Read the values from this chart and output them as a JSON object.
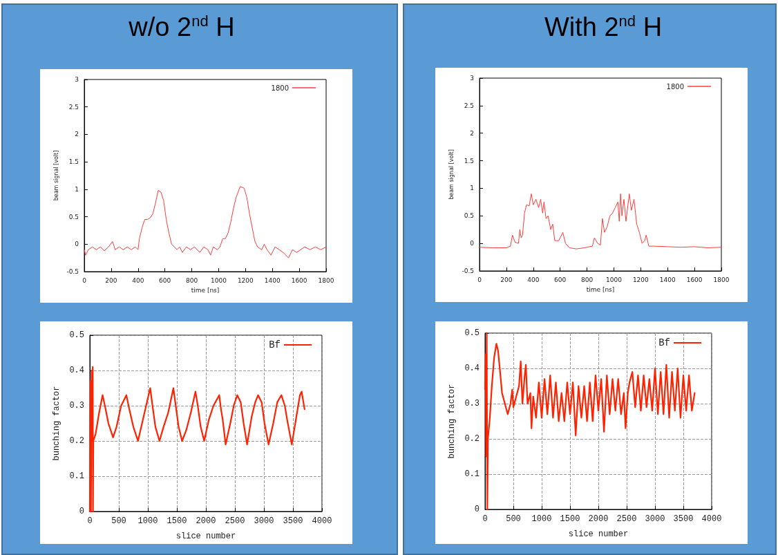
{
  "chart_data": [
    {
      "type": "line",
      "title": "w/o 2$^{nd}$ H",
      "xlabel": "time [ns]",
      "ylabel": "beam signal [volt]",
      "xlim": [
        0,
        1800
      ],
      "xticks": [
        0,
        200,
        400,
        600,
        800,
        1000,
        1200,
        1400,
        1600,
        1800
      ],
      "ylim": [
        -0.5,
        3
      ],
      "yticks": [
        -0.5,
        0,
        0.5,
        1,
        1.5,
        2,
        2.5,
        3
      ],
      "grid": false,
      "legend": "top right",
      "marker": "none",
      "line_style": "solid",
      "series": [
        {
          "name": "1800",
          "color": "#ff3b3b",
          "x": [
            0,
            10,
            30,
            60,
            90,
            120,
            150,
            180,
            210,
            230,
            260,
            290,
            320,
            350,
            380,
            400,
            410,
            430,
            450,
            470,
            490,
            510,
            530,
            550,
            570,
            590,
            610,
            630,
            650,
            670,
            690,
            710,
            730,
            760,
            790,
            820,
            860,
            890,
            920,
            940,
            960,
            990,
            1010,
            1030,
            1050,
            1070,
            1090,
            1110,
            1130,
            1160,
            1190,
            1210,
            1230,
            1250,
            1270,
            1290,
            1320,
            1340,
            1360,
            1390,
            1420,
            1450,
            1480,
            1520,
            1550,
            1580,
            1610,
            1640,
            1680,
            1720,
            1760,
            1800
          ],
          "values": [
            -0.1,
            -0.2,
            -0.1,
            -0.05,
            -0.1,
            -0.05,
            -0.12,
            -0.05,
            0.05,
            -0.1,
            -0.05,
            -0.1,
            -0.05,
            -0.1,
            -0.05,
            -0.1,
            0.1,
            0.3,
            0.45,
            0.45,
            0.48,
            0.55,
            0.75,
            0.98,
            0.95,
            0.8,
            0.45,
            0.2,
            0.0,
            -0.05,
            -0.1,
            -0.05,
            -0.15,
            -0.05,
            -0.1,
            -0.05,
            -0.15,
            -0.05,
            -0.1,
            -0.2,
            -0.05,
            -0.1,
            -0.05,
            0.1,
            0.1,
            0.2,
            0.4,
            0.65,
            0.85,
            1.05,
            1.02,
            0.85,
            0.55,
            0.3,
            0.05,
            -0.05,
            -0.1,
            0.0,
            -0.1,
            -0.2,
            -0.05,
            -0.1,
            -0.15,
            -0.25,
            -0.1,
            -0.15,
            -0.1,
            -0.05,
            -0.1,
            -0.05,
            -0.1,
            -0.05
          ]
        }
      ]
    },
    {
      "type": "line",
      "title": "With 2$^{nd}$ H",
      "xlabel": "time [ns]",
      "ylabel": "beam signal [volt]",
      "xlim": [
        0,
        1800
      ],
      "xticks": [
        0,
        200,
        400,
        600,
        800,
        1000,
        1200,
        1400,
        1600,
        1800
      ],
      "ylim": [
        -0.5,
        3
      ],
      "yticks": [
        -0.5,
        0,
        0.5,
        1,
        1.5,
        2,
        2.5,
        3
      ],
      "grid": false,
      "legend": "top right",
      "marker": "none",
      "line_style": "solid",
      "series": [
        {
          "name": "1800",
          "color": "#ff3b3b",
          "x": [
            0,
            100,
            200,
            230,
            245,
            265,
            290,
            300,
            310,
            320,
            335,
            350,
            370,
            385,
            400,
            420,
            440,
            455,
            470,
            480,
            495,
            510,
            530,
            545,
            560,
            590,
            620,
            640,
            670,
            720,
            780,
            840,
            855,
            880,
            900,
            915,
            930,
            950,
            970,
            990,
            1010,
            1030,
            1040,
            1050,
            1060,
            1075,
            1090,
            1105,
            1115,
            1130,
            1150,
            1170,
            1190,
            1210,
            1230,
            1240,
            1260,
            1300,
            1400,
            1500,
            1600,
            1700,
            1800
          ],
          "values": [
            -0.07,
            -0.08,
            -0.08,
            -0.05,
            0.15,
            0.02,
            0.0,
            0.25,
            0.1,
            0.15,
            0.55,
            0.7,
            0.68,
            0.9,
            0.7,
            0.8,
            0.65,
            0.8,
            0.55,
            0.75,
            0.45,
            0.5,
            0.25,
            0.35,
            0.05,
            0.05,
            0.2,
            0.0,
            -0.08,
            -0.1,
            -0.08,
            -0.05,
            0.1,
            0.0,
            -0.03,
            0.45,
            0.2,
            0.3,
            0.5,
            0.55,
            0.65,
            0.75,
            0.4,
            0.9,
            0.5,
            0.8,
            0.4,
            0.7,
            0.9,
            0.6,
            0.8,
            0.35,
            0.2,
            0.0,
            0.05,
            0.15,
            -0.05,
            -0.05,
            -0.06,
            -0.07,
            -0.06,
            -0.08,
            -0.07
          ]
        }
      ]
    },
    {
      "type": "line",
      "xlabel": "slice number",
      "ylabel": "bunching factor",
      "xlim": [
        0,
        4000
      ],
      "xticks": [
        0,
        500,
        1000,
        1500,
        2000,
        2500,
        3000,
        3500,
        4000
      ],
      "ylim": [
        0,
        0.5
      ],
      "yticks": [
        0,
        0.1,
        0.2,
        0.3,
        0.4,
        0.5
      ],
      "grid": true,
      "legend": "top right",
      "marker": "none",
      "line_style": "solid",
      "series": [
        {
          "name": "Bf",
          "color": "#ff2200",
          "x": [
            0,
            10,
            20,
            30,
            40,
            50,
            55,
            60,
            100,
            160,
            220,
            260,
            320,
            400,
            460,
            540,
            630,
            680,
            750,
            830,
            900,
            970,
            1040,
            1080,
            1130,
            1200,
            1270,
            1350,
            1440,
            1480,
            1530,
            1590,
            1660,
            1740,
            1820,
            1860,
            1910,
            1970,
            2050,
            2130,
            2230,
            2260,
            2290,
            2340,
            2420,
            2480,
            2540,
            2600,
            2650,
            2710,
            2790,
            2850,
            2900,
            2960,
            3010,
            3080,
            3160,
            3230,
            3300,
            3360,
            3400,
            3480,
            3560,
            3620,
            3650,
            3700
          ],
          "values": [
            0,
            0.37,
            0,
            0.4,
            0.2,
            0.41,
            0,
            0.2,
            0.22,
            0.28,
            0.33,
            0.3,
            0.25,
            0.21,
            0.24,
            0.3,
            0.33,
            0.29,
            0.24,
            0.2,
            0.25,
            0.3,
            0.35,
            0.3,
            0.24,
            0.2,
            0.24,
            0.28,
            0.35,
            0.3,
            0.24,
            0.2,
            0.23,
            0.28,
            0.34,
            0.3,
            0.24,
            0.2,
            0.26,
            0.3,
            0.33,
            0.29,
            0.26,
            0.19,
            0.25,
            0.3,
            0.33,
            0.31,
            0.25,
            0.19,
            0.27,
            0.31,
            0.33,
            0.31,
            0.25,
            0.19,
            0.25,
            0.31,
            0.33,
            0.3,
            0.26,
            0.19,
            0.27,
            0.33,
            0.34,
            0.29
          ]
        }
      ]
    },
    {
      "type": "line",
      "xlabel": "slice number",
      "ylabel": "bunching factor",
      "xlim": [
        0,
        4000
      ],
      "xticks": [
        0,
        500,
        1000,
        1500,
        2000,
        2500,
        3000,
        3500,
        4000
      ],
      "ylim": [
        0,
        0.5
      ],
      "yticks": [
        0,
        0.1,
        0.2,
        0.3,
        0.4,
        0.5
      ],
      "grid": true,
      "legend": "top right",
      "marker": "none",
      "line_style": "solid",
      "series": [
        {
          "name": "Bf",
          "color": "#ff2200",
          "x": [
            0,
            10,
            20,
            30,
            40,
            50,
            80,
            120,
            160,
            200,
            230,
            260,
            300,
            350,
            400,
            450,
            480,
            500,
            550,
            600,
            630,
            660,
            700,
            720,
            750,
            800,
            820,
            850,
            900,
            950,
            1000,
            1050,
            1100,
            1150,
            1200,
            1250,
            1300,
            1350,
            1400,
            1450,
            1500,
            1550,
            1600,
            1650,
            1700,
            1750,
            1800,
            1850,
            1900,
            1950,
            2000,
            2050,
            2100,
            2150,
            2200,
            2250,
            2300,
            2350,
            2400,
            2450,
            2480,
            2520,
            2550,
            2600,
            2650,
            2700,
            2750,
            2800,
            2850,
            2900,
            2950,
            3000,
            3050,
            3100,
            3150,
            3200,
            3250,
            3300,
            3350,
            3400,
            3450,
            3500,
            3550,
            3600,
            3650,
            3700
          ],
          "values": [
            0.34,
            0.44,
            0.15,
            0.5,
            0.0,
            0.2,
            0.25,
            0.35,
            0.43,
            0.47,
            0.45,
            0.4,
            0.33,
            0.3,
            0.27,
            0.3,
            0.34,
            0.29,
            0.32,
            0.35,
            0.42,
            0.3,
            0.38,
            0.41,
            0.3,
            0.33,
            0.23,
            0.32,
            0.26,
            0.36,
            0.26,
            0.37,
            0.27,
            0.38,
            0.26,
            0.36,
            0.25,
            0.33,
            0.25,
            0.36,
            0.27,
            0.36,
            0.21,
            0.35,
            0.26,
            0.35,
            0.25,
            0.36,
            0.25,
            0.38,
            0.28,
            0.37,
            0.22,
            0.38,
            0.27,
            0.37,
            0.28,
            0.37,
            0.27,
            0.33,
            0.23,
            0.33,
            0.36,
            0.39,
            0.29,
            0.38,
            0.28,
            0.38,
            0.29,
            0.37,
            0.28,
            0.4,
            0.27,
            0.39,
            0.27,
            0.41,
            0.26,
            0.39,
            0.28,
            0.4,
            0.26,
            0.38,
            0.28,
            0.38,
            0.28,
            0.33
          ]
        }
      ]
    }
  ]
}
